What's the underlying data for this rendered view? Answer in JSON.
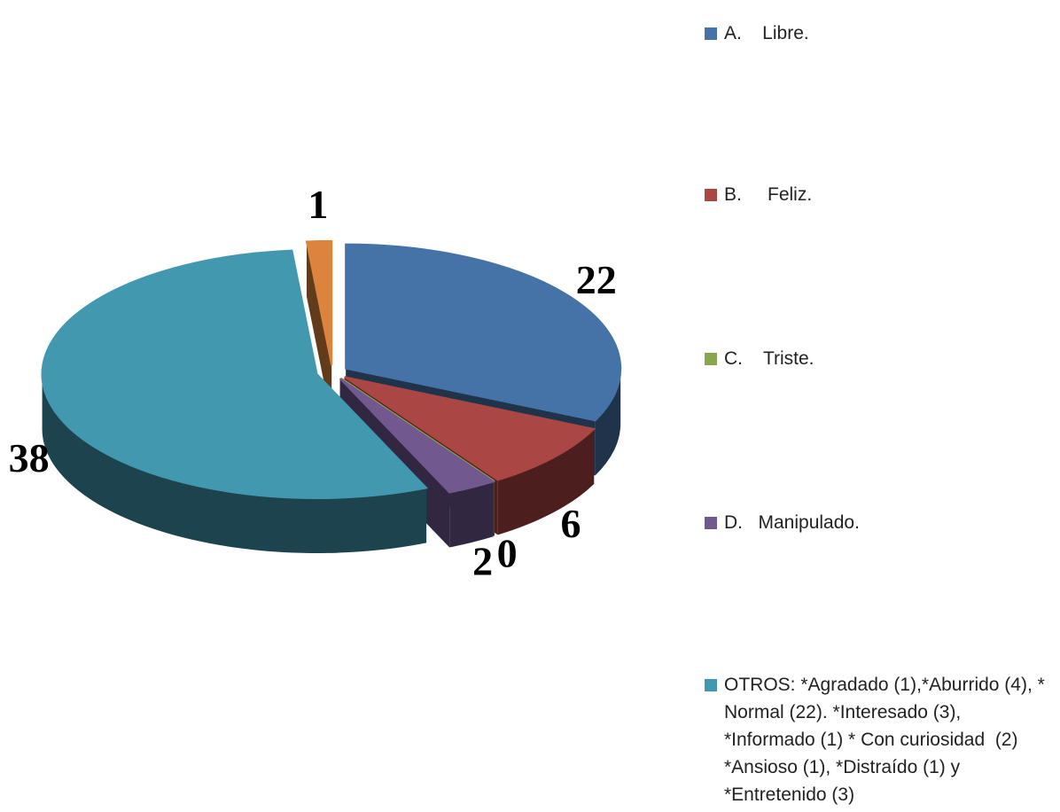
{
  "chart_data": {
    "type": "pie",
    "categories": [
      "A.    Libre.",
      "B.     Feliz.",
      "C.    Triste.",
      "D.   Manipulado.",
      "OTROS: *Agradado (1),*Aburrido (4), * Normal (22). *Interesado (3), *Informado (1) * Con curiosidad  (2) *Ansioso (1), *Distraído (1) y *Entretenido (3)",
      null
    ],
    "values": [
      22,
      6,
      0,
      2,
      38,
      1
    ],
    "colors": [
      "#4572a7",
      "#aa4643",
      "#89a54e",
      "#71588f",
      "#4198af",
      "#db843d"
    ],
    "legend": "right"
  }
}
